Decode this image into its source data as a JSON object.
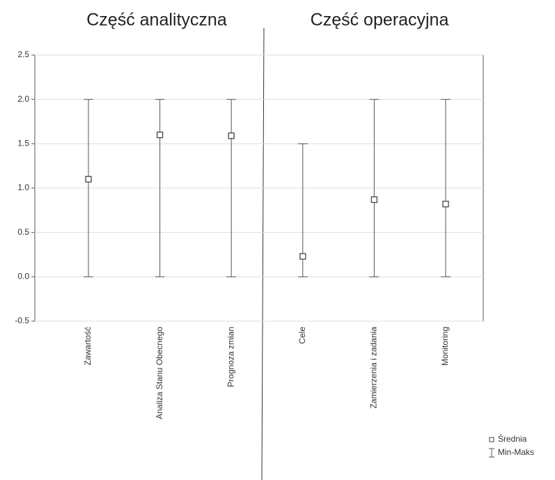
{
  "chart_data": {
    "type": "errorbar",
    "annotations": [
      "Część analityczna",
      "Część operacyjna"
    ],
    "categories": [
      "Zawartość",
      "Analiza Stanu Obecnego",
      "Prognoza zmian",
      "Cele",
      "Zamierzenia i zadania",
      "Monitoring"
    ],
    "series": [
      {
        "name": "Średnia",
        "color": "#444444",
        "values": [
          1.1,
          1.6,
          1.59,
          0.23,
          0.87,
          0.82
        ]
      },
      {
        "name": "Min-Maks",
        "color": "#555555",
        "low": [
          0,
          0,
          0,
          0,
          0,
          0
        ],
        "high": [
          2,
          2,
          2,
          1.5,
          2,
          2
        ]
      }
    ],
    "ylim": [
      -0.5,
      2.5
    ],
    "yticks": [
      -0.5,
      {
        "value": 0,
        "label": "0.0"
      },
      0.5,
      {
        "value": 1,
        "label": "1.0"
      },
      1.5,
      {
        "value": 2,
        "label": "2.0"
      },
      2.5
    ],
    "grid": true,
    "legend": "bottom-right"
  }
}
